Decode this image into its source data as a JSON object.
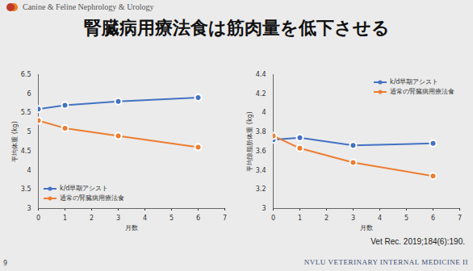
{
  "header": "Canine & Feline Nephrology & Urology",
  "title": "腎臓病用療法食は筋肉量を低下させる",
  "citation": "Vet Rec. 2019;184(6):190.",
  "footer": "NVLU VETERINARY INTERNAL MEDICINE II",
  "page": "9",
  "chart_data": [
    {
      "type": "line",
      "x_label": "月数",
      "y_label": "平均体重 (kg)",
      "x": [
        0,
        1,
        3,
        6
      ],
      "series": [
        {
          "name": "k/d早期アシスト",
          "color": "#4472c4",
          "marker": "circle",
          "line_style": "solid",
          "values": [
            5.6,
            5.7,
            5.8,
            5.9
          ]
        },
        {
          "name": "通常の腎臓病用療法食",
          "color": "#ed7d31",
          "marker": "circle",
          "line_style": "solid",
          "values": [
            5.3,
            5.1,
            4.9,
            4.6
          ]
        }
      ],
      "xlim": [
        0,
        7
      ],
      "xticks": [
        0,
        1,
        2,
        3,
        4,
        5,
        6,
        7
      ],
      "ylim": [
        3,
        6.5
      ],
      "yticks": [
        3,
        3.5,
        4,
        4.5,
        5,
        5.5,
        6,
        6.5
      ],
      "grid": false,
      "legend": "lower left"
    },
    {
      "type": "line",
      "x_label": "月数",
      "y_label": "平均除脂肪体重 (kg)",
      "x": [
        0,
        1,
        3,
        6
      ],
      "series": [
        {
          "name": "k/d早期アシスト",
          "color": "#4472c4",
          "marker": "circle",
          "line_style": "solid",
          "values": [
            3.72,
            3.74,
            3.66,
            3.68
          ]
        },
        {
          "name": "通常の腎臓病用療法食",
          "color": "#ed7d31",
          "marker": "circle",
          "line_style": "solid",
          "values": [
            3.76,
            3.63,
            3.48,
            3.34
          ]
        }
      ],
      "xlim": [
        0,
        7
      ],
      "xticks": [
        0,
        1,
        2,
        3,
        4,
        5,
        6,
        7
      ],
      "ylim": [
        3,
        4.4
      ],
      "yticks": [
        3,
        3.2,
        3.4,
        3.6,
        3.8,
        4,
        4.2,
        4.4
      ],
      "grid": false,
      "legend": "upper right"
    }
  ]
}
